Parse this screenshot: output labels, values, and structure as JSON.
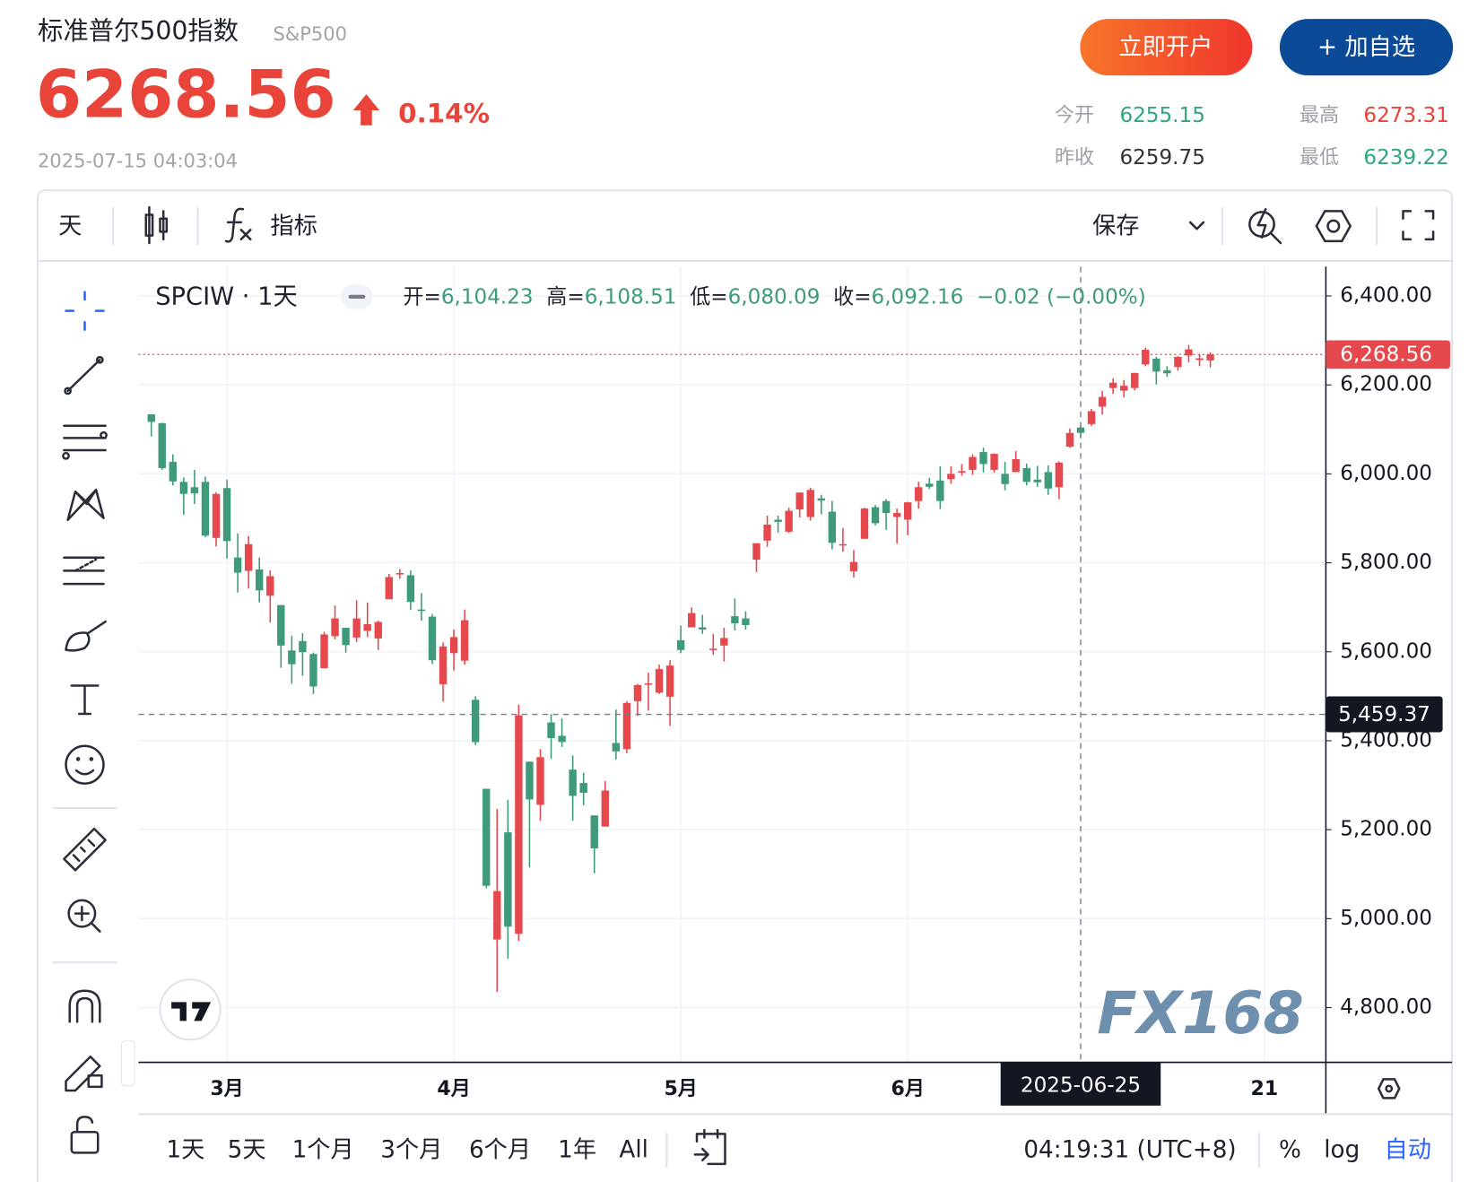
{
  "header": {
    "title": "标准普尔500指数",
    "code": "S&P500",
    "price": "6268.56",
    "change": "0.14%",
    "time": "2025-07-15 04:03:04",
    "buttons": [
      "立即开户",
      "+ 加自选"
    ],
    "stats": [
      {
        "label": "今开",
        "value": "6255.15"
      },
      {
        "label": "最高",
        "value": "6273.31"
      },
      {
        "label": "昨收",
        "value": "6259.75"
      },
      {
        "label": "最低",
        "value": "6239.22"
      }
    ]
  },
  "toolbar": {
    "interval": "天",
    "indicator": "指标",
    "save": "保存"
  },
  "chart_data": {
    "type": "candlestick",
    "symbol": "SPCIW · 1天",
    "legend": [
      {
        "label": "开=",
        "value": "6,104.23"
      },
      {
        "label": "高=",
        "value": "6,108.51"
      },
      {
        "label": "低=",
        "value": "6,080.09"
      },
      {
        "label": "收=",
        "value": "6,092.16"
      }
    ],
    "legend_change": "−0.02 (−0.00%)",
    "up_color": "#e5484d",
    "down_color": "#3f9a7c",
    "grid": true,
    "categories": [
      null,
      null,
      null,
      null,
      null,
      null,
      null,
      "3月",
      null,
      null,
      null,
      null,
      null,
      null,
      null,
      null,
      null,
      null,
      null,
      null,
      null,
      null,
      null,
      null,
      null,
      null,
      null,
      null,
      "4月",
      null,
      null,
      null,
      null,
      null,
      null,
      null,
      null,
      null,
      null,
      null,
      null,
      null,
      null,
      null,
      null,
      null,
      null,
      null,
      null,
      "5月",
      null,
      null,
      null,
      null,
      null,
      null,
      null,
      null,
      null,
      null,
      null,
      null,
      null,
      null,
      null,
      null,
      null,
      null,
      null,
      null,
      "6月",
      null,
      null,
      null,
      null,
      null,
      null,
      null,
      null,
      null,
      null,
      null,
      null,
      null,
      null,
      null,
      null,
      null,
      null,
      null,
      null,
      null,
      null,
      null,
      null,
      null,
      null,
      null,
      null,
      null,
      null,
      null,
      null,
      "21"
    ],
    "open": [
      6134,
      6114,
      6027,
      5982,
      5970,
      5982,
      5856,
      5968,
      5812,
      5782,
      5785,
      5726,
      5705,
      5603,
      5624,
      5595,
      5563,
      5635,
      5654,
      5632,
      5647,
      5630,
      5718,
      5775,
      5772,
      5695,
      5679,
      5527,
      5597,
      5580,
      5492,
      5292,
      4953,
      5194,
      4966,
      5353,
      5256,
      5441,
      5411,
      5335,
      5305,
      5232,
      5207,
      5395,
      5381,
      5489,
      5529,
      5508,
      5499,
      5626,
      5655,
      5655,
      5606,
      5614,
      5680,
      5675,
      5807,
      5850,
      5897,
      5870,
      5920,
      5903,
      5945,
      5915,
      5842,
      5781,
      5854,
      5925,
      5939,
      5903,
      5897,
      5939,
      5978,
      5985,
      5988,
      6005,
      6009,
      6049,
      6009,
      6000,
      6004,
      6013,
      5987,
      6004,
      5970,
      6061,
      6104.23,
      6112,
      6151,
      6193,
      6187,
      6193,
      6246,
      6259,
      6233,
      6240,
      6266,
      6256,
      6255.15,
      null,
      null,
      null,
      null,
      null
    ],
    "high": [
      6134,
      6115,
      6044,
      5992,
      6009,
      5994,
      5959,
      5987,
      5866,
      5860,
      5812,
      5783,
      5705,
      5636,
      5642,
      5598,
      5645,
      5704,
      5654,
      5716,
      5711,
      5670,
      5775,
      5786,
      5783,
      5732,
      5685,
      5621,
      5650,
      5695,
      5500,
      5292,
      5247,
      5267,
      5481,
      5353,
      5381,
      5460,
      5450,
      5367,
      5328,
      5232,
      5309,
      5470,
      5489,
      5528,
      5553,
      5571,
      5581,
      5659,
      5700,
      5683,
      5640,
      5654,
      5720,
      5691,
      5844,
      5906,
      5906,
      5924,
      5958,
      5969,
      5953,
      5939,
      5878,
      5829,
      5924,
      5930,
      5943,
      5922,
      5937,
      5982,
      5991,
      6017,
      6017,
      6022,
      6044,
      6059,
      6046,
      6027,
      6051,
      6023,
      6018,
      6019,
      6028,
      6102,
      6108.51,
      6146,
      6187,
      6215,
      6211,
      6227,
      6284,
      6263,
      6242,
      6265,
      6290,
      6269,
      6273.31,
      null,
      null,
      null,
      null,
      null
    ],
    "low": [
      6084,
      6009,
      5974,
      5908,
      5932,
      5858,
      5837,
      5810,
      5733,
      5742,
      5711,
      5666,
      5564,
      5528,
      5546,
      5505,
      5563,
      5628,
      5598,
      5622,
      5633,
      5604,
      5718,
      5764,
      5694,
      5670,
      5572,
      5488,
      5558,
      5571,
      5390,
      5069,
      4835,
      4910,
      4950,
      5115,
      5220,
      5359,
      5386,
      5220,
      5255,
      5102,
      5207,
      5358,
      5372,
      5456,
      5468,
      5505,
      5433,
      5597,
      5655,
      5640,
      5593,
      5578,
      5648,
      5650,
      5779,
      5836,
      5868,
      5867,
      5902,
      5895,
      5909,
      5830,
      5825,
      5767,
      5854,
      5884,
      5874,
      5843,
      5862,
      5922,
      5966,
      5921,
      5978,
      5996,
      5998,
      6003,
      6003,
      5963,
      6004,
      5974,
      5971,
      5953,
      5943,
      6059,
      6080.09,
      6108,
      6133,
      6180,
      6172,
      6188,
      6242,
      6201,
      6218,
      6232,
      6251,
      6242,
      6239.22,
      null,
      null,
      null,
      null,
      null
    ],
    "close": [
      6117,
      6013,
      5983,
      5955,
      5956,
      5861,
      5955,
      5849,
      5778,
      5842,
      5738,
      5770,
      5614,
      5572,
      5599,
      5522,
      5639,
      5675,
      5615,
      5675,
      5662,
      5667,
      5768,
      5777,
      5712,
      5693,
      5581,
      5612,
      5633,
      5671,
      5397,
      5074,
      5062,
      4982,
      5457,
      5268,
      5363,
      5406,
      5397,
      5276,
      5283,
      5158,
      5288,
      5376,
      5485,
      5525,
      5529,
      5561,
      5569,
      5604,
      5687,
      5650,
      5607,
      5631,
      5664,
      5660,
      5844,
      5886,
      5892,
      5917,
      5958,
      5964,
      5940,
      5845,
      5842,
      5802,
      5922,
      5889,
      5912,
      5912,
      5936,
      5970,
      5971,
      5939,
      6000,
      6006,
      6038,
      6022,
      6045,
      5977,
      6033,
      5982,
      5981,
      5967,
      6025,
      6092,
      6092.16,
      6141,
      6173,
      6205,
      6198,
      6227,
      6279,
      6230,
      6226,
      6263,
      6280,
      6259.75,
      6268.56,
      null,
      null,
      null,
      null,
      null
    ],
    "ylim": [
      4677,
      6466
    ],
    "yticks": [
      {
        "value": 4800,
        "label": "4,800.00"
      },
      {
        "value": 5000,
        "label": "5,000.00"
      },
      {
        "value": 5200,
        "label": "5,200.00"
      },
      {
        "value": 5400,
        "label": "5,400.00"
      },
      {
        "value": 5600,
        "label": "5,600.00"
      },
      {
        "value": 5800,
        "label": "5,800.00"
      },
      {
        "value": 6000,
        "label": "6,000.00"
      },
      {
        "value": 6200,
        "label": "6,200.00"
      },
      {
        "value": 6400,
        "label": "6,400.00"
      }
    ],
    "last_price": {
      "value": 6268.56,
      "label": "6,268.56"
    },
    "crosshair": {
      "value": 5459.37,
      "label": "5,459.37",
      "date": "2025-06-25"
    },
    "watermark": "FX168"
  },
  "footer": {
    "ranges": [
      "1天",
      "5天",
      "1个月",
      "3个月",
      "6个月",
      "1年",
      "All"
    ],
    "time": "04:19:31 (UTC+8)",
    "options": [
      "%",
      "log",
      "自动"
    ]
  }
}
